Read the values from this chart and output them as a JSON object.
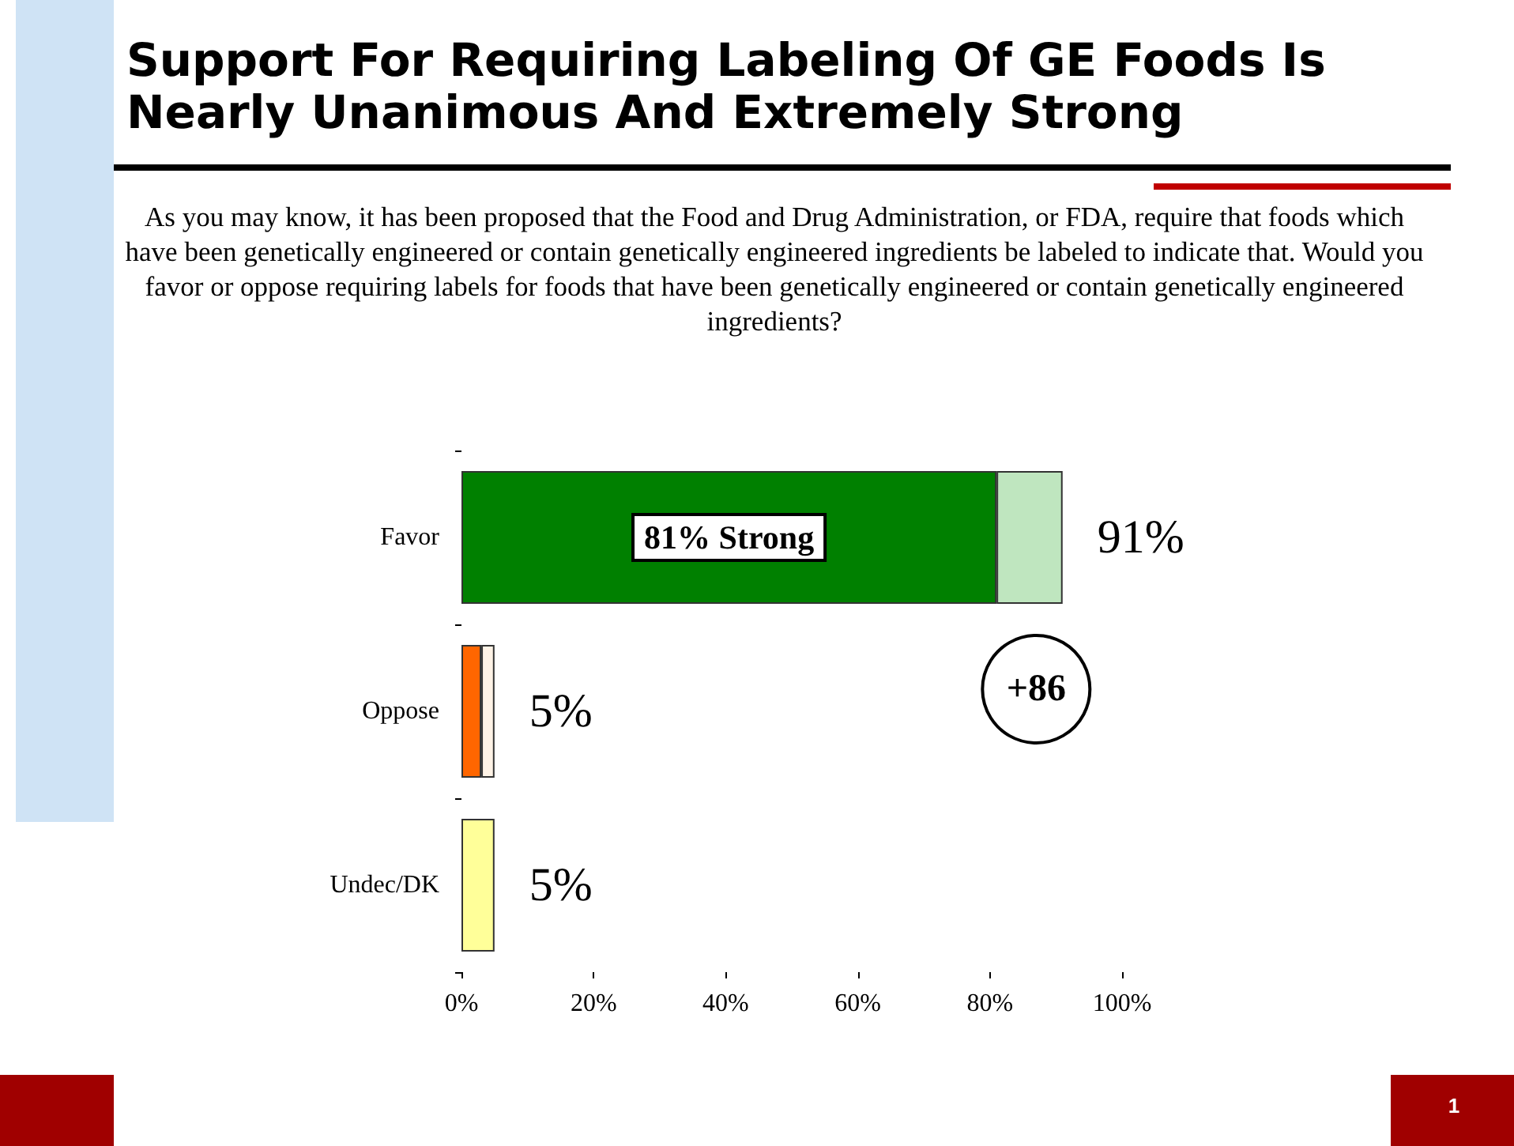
{
  "chart_data": {
    "type": "bar",
    "orientation": "horizontal",
    "stacked": true,
    "title": "Support For Requiring Labeling Of GE Foods Is Nearly Unanimous  And Extremely Strong",
    "subtitle": "As you may know, it has been proposed that the Food and Drug Administration, or FDA, require that foods which have been genetically engineered or contain genetically engineered ingredients be labeled to indicate that. Would you favor or oppose requiring labels for foods that have been genetically engineered or contain genetically engineered ingredients?",
    "categories": [
      "Favor",
      "Oppose",
      "Undec/DK"
    ],
    "series": [
      {
        "values": [
          81,
          3,
          5
        ],
        "colors": [
          "#008000",
          "#ff6600",
          "#ffff99"
        ],
        "value_labels": [
          "81% Strong",
          null,
          null
        ]
      },
      {
        "values": [
          10,
          2,
          null
        ],
        "colors": [
          "#bfe6bf",
          "#fff3e6",
          null
        ]
      }
    ],
    "totals": [
      "91%",
      "5%",
      "5%"
    ],
    "xlim": [
      0,
      100
    ],
    "xticks": [
      {
        "value": 0,
        "label": "0%"
      },
      {
        "value": 20,
        "label": "20%"
      },
      {
        "value": 40,
        "label": "40%"
      },
      {
        "value": 60,
        "label": "60%"
      },
      {
        "value": 80,
        "label": "80%"
      },
      {
        "value": 100,
        "label": "100%"
      }
    ],
    "grid": false,
    "annotations": [
      "+86",
      "1"
    ]
  }
}
